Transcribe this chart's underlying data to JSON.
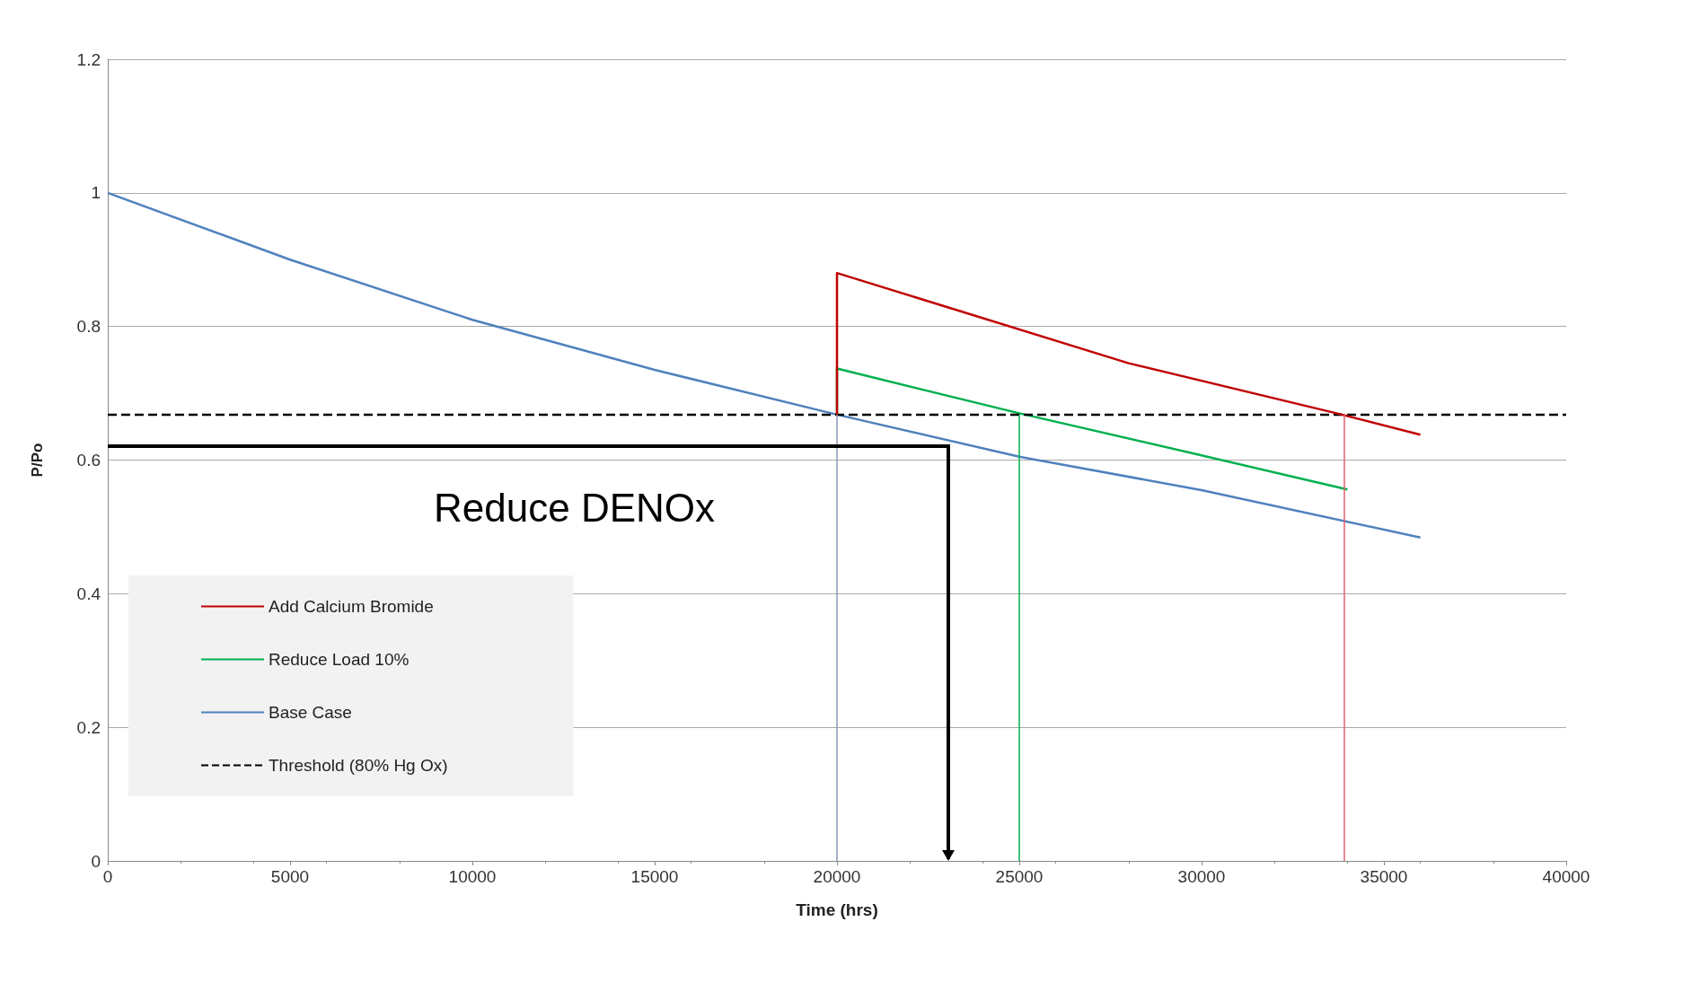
{
  "chart_data": {
    "type": "line",
    "xlabel": "Time (hrs)",
    "ylabel": "P/Po",
    "xlim": [
      0,
      40000
    ],
    "xticks": [
      0,
      5000,
      10000,
      15000,
      20000,
      25000,
      30000,
      35000,
      40000
    ],
    "ylim": [
      0,
      1.2
    ],
    "yticks": [
      0,
      0.2,
      0.4,
      0.6,
      0.8,
      1,
      1.2
    ],
    "grid": "y",
    "legend": "bottom left",
    "marker": "none",
    "annotations": [
      "Reduce DENOx"
    ],
    "series": [
      {
        "name": "Add Calcium Bromide",
        "color": "#c00000",
        "x": [
          20000,
          20000,
          28000,
          33700,
          36000
        ],
        "values": [
          0.668,
          0.88,
          0.745,
          0.67,
          0.638
        ]
      },
      {
        "name": "Reduce Load 10%",
        "color": "#00b050",
        "x": [
          20000,
          20000,
          25000,
          30000,
          34000
        ],
        "values": [
          0.668,
          0.737,
          0.67,
          0.607,
          0.556
        ]
      },
      {
        "name": "Base Case",
        "color": "#4f81bd",
        "x": [
          0,
          5000,
          10000,
          15000,
          20000,
          25000,
          30000,
          36000
        ],
        "values": [
          1,
          0.9,
          0.81,
          0.735,
          0.668,
          0.605,
          0.555,
          0.484
        ]
      },
      {
        "name": "Threshold (80% Hg Ox)",
        "color": "#000000",
        "line_style": "dashed",
        "x": [
          0,
          40000
        ],
        "values": [
          0.668,
          0.668
        ]
      }
    ],
    "ref_lines": [
      {
        "axis": "x",
        "value": 20000,
        "color": "#8a9bb5"
      },
      {
        "axis": "x",
        "value": 25000,
        "color": "#00b050"
      },
      {
        "axis": "x",
        "value": 33900,
        "color": "#e06070"
      }
    ]
  }
}
